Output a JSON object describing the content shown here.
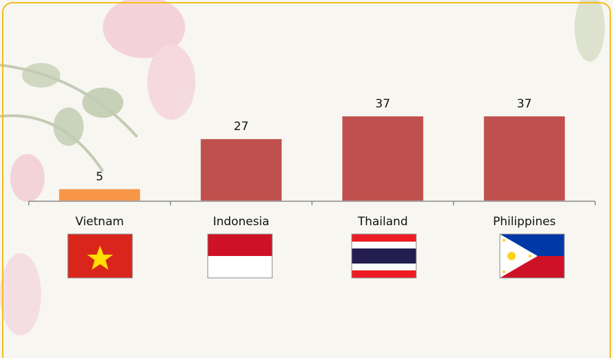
{
  "chart_data": {
    "type": "bar",
    "categories": [
      "Vietnam",
      "Indonesia",
      "Thailand",
      "Philippines"
    ],
    "values": [
      5,
      27,
      37,
      37
    ],
    "colors": [
      "#f79646",
      "#c0504d",
      "#c0504d",
      "#c0504d"
    ]
  }
}
